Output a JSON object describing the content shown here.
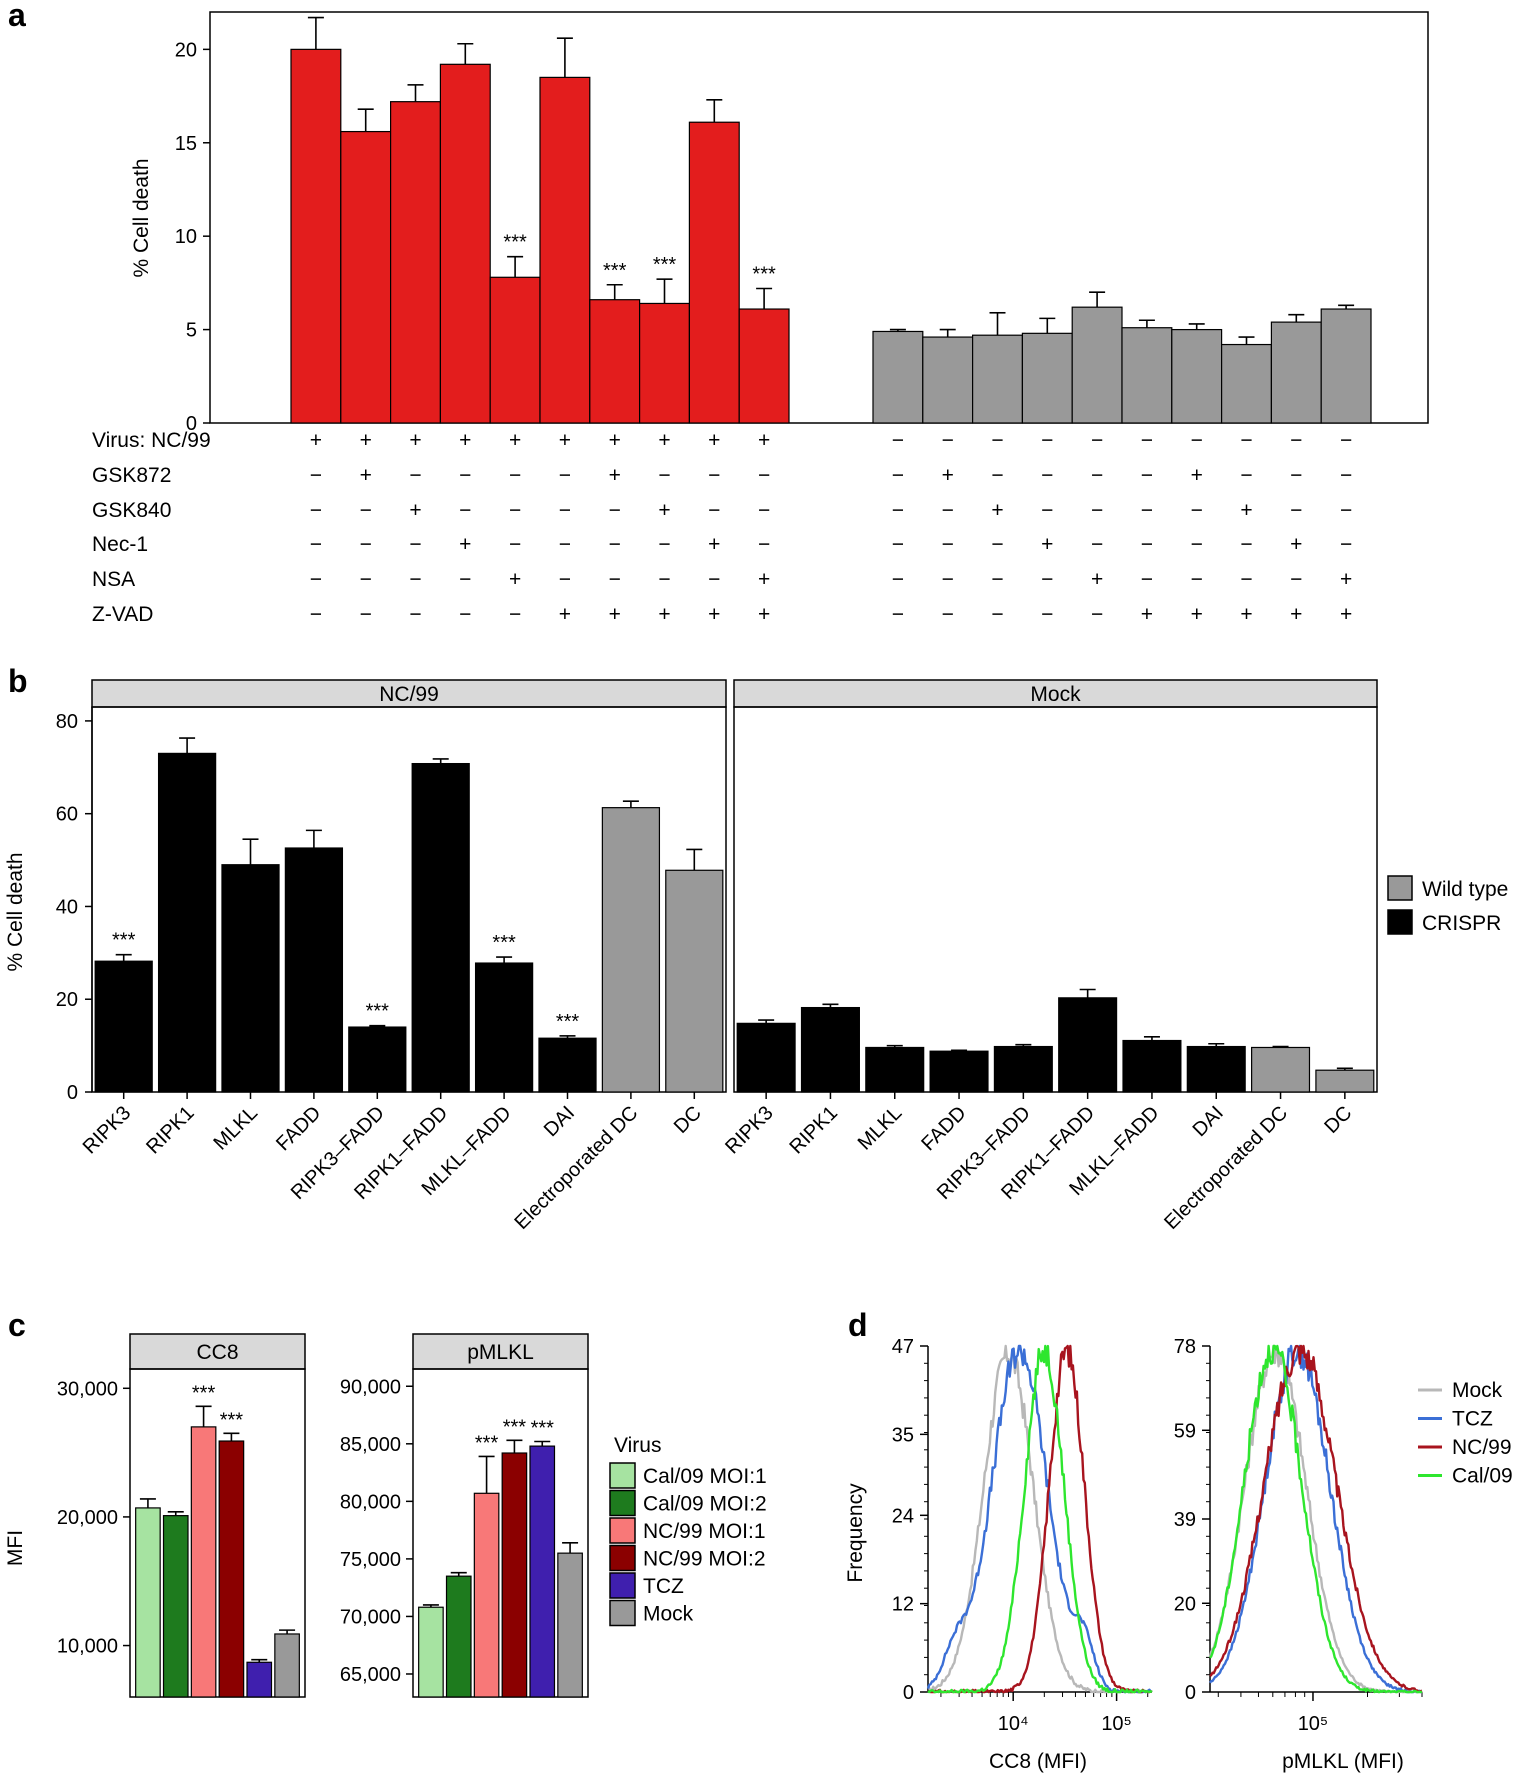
{
  "panels": {
    "a": "a",
    "b": "b",
    "c": "c",
    "d": "d"
  },
  "chart_data": [
    {
      "id": "a",
      "type": "bar",
      "ylabel": "% Cell death",
      "ylim": [
        0,
        22
      ],
      "yticks": [
        "0",
        "5",
        "10",
        "15",
        "20"
      ],
      "ytick_values": [
        0,
        5,
        10,
        15,
        20
      ],
      "colors": {
        "infected": "#e31d1d",
        "mock": "#999999"
      },
      "values": [
        20.0,
        15.6,
        17.2,
        19.2,
        7.8,
        18.5,
        6.6,
        6.4,
        16.1,
        6.1,
        4.9,
        4.6,
        4.7,
        4.8,
        6.2,
        5.1,
        5.0,
        4.2,
        5.4,
        6.1
      ],
      "errors": [
        1.7,
        1.2,
        0.9,
        1.1,
        1.1,
        2.1,
        0.8,
        1.3,
        1.2,
        1.1,
        0.1,
        0.4,
        1.2,
        0.8,
        0.8,
        0.4,
        0.3,
        0.4,
        0.4,
        0.2
      ],
      "significance": [
        "",
        "",
        "",
        "",
        "***",
        "",
        "***",
        "***",
        "",
        "***",
        "",
        "",
        "",
        "",
        "",
        "",
        "",
        "",
        "",
        ""
      ],
      "conditions": [
        {
          "label": "Virus: NC/99",
          "signs": [
            "+",
            "+",
            "+",
            "+",
            "+",
            "+",
            "+",
            "+",
            "+",
            "+",
            "−",
            "−",
            "−",
            "−",
            "−",
            "−",
            "−",
            "−",
            "−",
            "−"
          ]
        },
        {
          "label": "GSK872",
          "signs": [
            "−",
            "+",
            "−",
            "−",
            "−",
            "−",
            "+",
            "−",
            "−",
            "−",
            "−",
            "+",
            "−",
            "−",
            "−",
            "−",
            "+",
            "−",
            "−",
            "−"
          ]
        },
        {
          "label": "GSK840",
          "signs": [
            "−",
            "−",
            "+",
            "−",
            "−",
            "−",
            "−",
            "+",
            "−",
            "−",
            "−",
            "−",
            "+",
            "−",
            "−",
            "−",
            "−",
            "+",
            "−",
            "−"
          ]
        },
        {
          "label": "Nec-1",
          "signs": [
            "−",
            "−",
            "−",
            "+",
            "−",
            "−",
            "−",
            "−",
            "+",
            "−",
            "−",
            "−",
            "−",
            "+",
            "−",
            "−",
            "−",
            "−",
            "+",
            "−"
          ]
        },
        {
          "label": "NSA",
          "signs": [
            "−",
            "−",
            "−",
            "−",
            "+",
            "−",
            "−",
            "−",
            "−",
            "+",
            "−",
            "−",
            "−",
            "−",
            "+",
            "−",
            "−",
            "−",
            "−",
            "+"
          ]
        },
        {
          "label": "Z-VAD",
          "signs": [
            "−",
            "−",
            "−",
            "−",
            "−",
            "+",
            "+",
            "+",
            "+",
            "+",
            "−",
            "−",
            "−",
            "−",
            "−",
            "+",
            "+",
            "+",
            "+",
            "+"
          ]
        }
      ]
    },
    {
      "id": "b",
      "type": "bar",
      "ylabel": "% Cell death",
      "ylim": [
        0,
        83
      ],
      "yticks": [
        "0",
        "20",
        "40",
        "60",
        "80"
      ],
      "ytick_values": [
        0,
        20,
        40,
        60,
        80
      ],
      "categories": [
        "RIPK3",
        "RIPK1",
        "MLKL",
        "FADD",
        "RIPK3–FADD",
        "RIPK1–FADD",
        "MLKL–FADD",
        "DAI",
        "Electroporated DC",
        "DC"
      ],
      "genotype": [
        "CRISPR",
        "CRISPR",
        "CRISPR",
        "CRISPR",
        "CRISPR",
        "CRISPR",
        "CRISPR",
        "CRISPR",
        "Wild type",
        "Wild type"
      ],
      "legend": [
        {
          "label": "Wild type",
          "color": "#999999"
        },
        {
          "label": "CRISPR",
          "color": "#000000"
        }
      ],
      "facets": [
        {
          "label": "NC/99",
          "values": [
            28.2,
            73.0,
            49.0,
            52.6,
            14.0,
            70.8,
            27.8,
            11.6,
            61.3,
            47.8
          ],
          "errors": [
            1.4,
            3.3,
            5.5,
            3.8,
            0.3,
            1.0,
            1.3,
            0.5,
            1.4,
            4.5
          ],
          "significance": [
            "***",
            "",
            "",
            "",
            "***",
            "",
            "***",
            "***",
            "",
            ""
          ]
        },
        {
          "label": "Mock",
          "values": [
            14.8,
            18.2,
            9.6,
            8.8,
            9.8,
            20.3,
            11.1,
            9.8,
            9.6,
            4.7
          ],
          "errors": [
            0.7,
            0.7,
            0.4,
            0.2,
            0.4,
            1.8,
            0.8,
            0.6,
            0.2,
            0.4
          ],
          "significance": [
            "",
            "",
            "",
            "",
            "",
            "",
            "",
            "",
            "",
            ""
          ]
        }
      ]
    },
    {
      "id": "c",
      "type": "bar",
      "ylabel": "MFI",
      "legend_title": "Virus",
      "categories": [
        "Cal/09 MOI:1",
        "Cal/09 MOI:2",
        "NC/99 MOI:1",
        "NC/99 MOI:2",
        "TCZ",
        "Mock"
      ],
      "colors": [
        "#a6e3a1",
        "#1e7b1e",
        "#f87878",
        "#8b0000",
        "#3f1fae",
        "#999999"
      ],
      "facets": [
        {
          "label": "CC8",
          "ylim": [
            6000,
            31500
          ],
          "yticks": [
            "10,000",
            "20,000",
            "30,000"
          ],
          "ytick_values": [
            10000,
            20000,
            30000
          ],
          "values": [
            20700,
            20100,
            27000,
            25900,
            8700,
            10900
          ],
          "errors": [
            700,
            300,
            1600,
            600,
            200,
            300
          ],
          "significance": [
            "",
            "",
            "***",
            "***",
            "",
            ""
          ]
        },
        {
          "label": "pMLKL",
          "ylim": [
            63000,
            91500
          ],
          "yticks": [
            "65,000",
            "70,000",
            "75,000",
            "80,000",
            "85,000",
            "90,000"
          ],
          "ytick_values": [
            65000,
            70000,
            75000,
            80000,
            85000,
            90000
          ],
          "values": [
            70800,
            73500,
            80700,
            84200,
            84800,
            75500
          ],
          "errors": [
            200,
            300,
            3200,
            1100,
            400,
            900
          ],
          "significance": [
            "",
            "",
            "***",
            "***",
            "***",
            ""
          ]
        }
      ]
    },
    {
      "id": "d",
      "type": "line",
      "ylabel": "Frequency",
      "legend": [
        {
          "label": "Mock",
          "color": "#b8b8b8"
        },
        {
          "label": "TCZ",
          "color": "#3b6fd6"
        },
        {
          "label": "NC/99",
          "color": "#a8141e"
        },
        {
          "label": "Cal/09",
          "color": "#2ee62e"
        }
      ],
      "plots": [
        {
          "xlabel": "CC8 (MFI)",
          "xscale": "log",
          "xlim": [
            1500,
            220000
          ],
          "xticks": [
            "10⁴",
            "10⁵"
          ],
          "xtick_values": [
            10000,
            100000
          ],
          "ylim": [
            0,
            47
          ],
          "yticks": [
            "0",
            "12",
            "24",
            "35",
            "47"
          ],
          "ytick_values": [
            0,
            12,
            24,
            35,
            47
          ],
          "series": [
            {
              "name": "Mock",
              "peak": 9000,
              "width": 0.24,
              "height": 46,
              "shoulder": 0
            },
            {
              "name": "TCZ",
              "peak": 11500,
              "width": 0.27,
              "height": 46.5,
              "shoulder": 1
            },
            {
              "name": "NC/99",
              "peak": 33000,
              "width": 0.17,
              "height": 46.5,
              "shoulder": 0
            },
            {
              "name": "Cal/09",
              "peak": 20000,
              "width": 0.19,
              "height": 46.5,
              "shoulder": 0
            }
          ]
        },
        {
          "xlabel": "pMLKL (MFI)",
          "xscale": "log",
          "xlim": [
            27000,
            400000
          ],
          "xticks": [
            "10⁵"
          ],
          "xtick_values": [
            100000
          ],
          "ylim": [
            0,
            78
          ],
          "yticks": [
            "0",
            "20",
            "39",
            "59",
            "78"
          ],
          "ytick_values": [
            0,
            20,
            39,
            59,
            78
          ],
          "series": [
            {
              "name": "Mock",
              "peak": 62000,
              "width": 0.17,
              "height": 77,
              "shoulder": 0
            },
            {
              "name": "TCZ",
              "peak": 82000,
              "width": 0.18,
              "height": 77,
              "shoulder": 0
            },
            {
              "name": "NC/99",
              "peak": 85000,
              "width": 0.2,
              "height": 77.5,
              "shoulder": 0
            },
            {
              "name": "Cal/09",
              "peak": 60000,
              "width": 0.16,
              "height": 77.5,
              "shoulder": 0
            }
          ]
        }
      ]
    }
  ]
}
